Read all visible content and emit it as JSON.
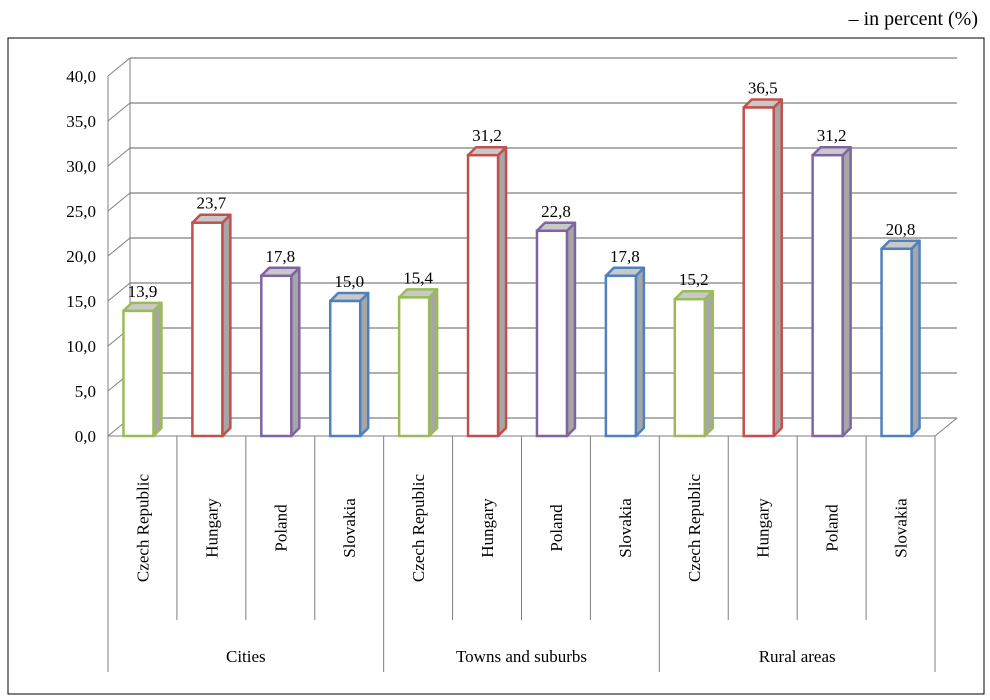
{
  "unit_note": "– in percent (%)",
  "chart_data": {
    "type": "bar",
    "style": "3d-clustered-column",
    "groups": [
      "Cities",
      "Towns and suburbs",
      "Rural areas"
    ],
    "categories": [
      "Czech Republic",
      "Hungary",
      "Poland",
      "Slovakia"
    ],
    "series": [
      {
        "name": "Cities",
        "values": [
          13.9,
          23.7,
          17.8,
          15.0
        ],
        "labels": [
          "13,9",
          "23,7",
          "17,8",
          "15,0"
        ]
      },
      {
        "name": "Towns and suburbs",
        "values": [
          15.4,
          31.2,
          22.8,
          17.8
        ],
        "labels": [
          "15,4",
          "31,2",
          "22,8",
          "17,8"
        ]
      },
      {
        "name": "Rural areas",
        "values": [
          15.2,
          36.5,
          31.2,
          20.8
        ],
        "labels": [
          "15,2",
          "36,5",
          "31,2",
          "20,8"
        ]
      }
    ],
    "country_colors": {
      "Czech Republic": "#9BBB59",
      "Hungary": "#C0504D",
      "Poland": "#8064A2",
      "Slovakia": "#4F81BD"
    },
    "ylim": [
      0,
      40
    ],
    "yticks": [
      "0,0",
      "5,0",
      "10,0",
      "15,0",
      "20,0",
      "25,0",
      "30,0",
      "35,0",
      "40,0"
    ],
    "grid": true,
    "legend": "none",
    "title": "",
    "xlabel": "",
    "ylabel": ""
  }
}
